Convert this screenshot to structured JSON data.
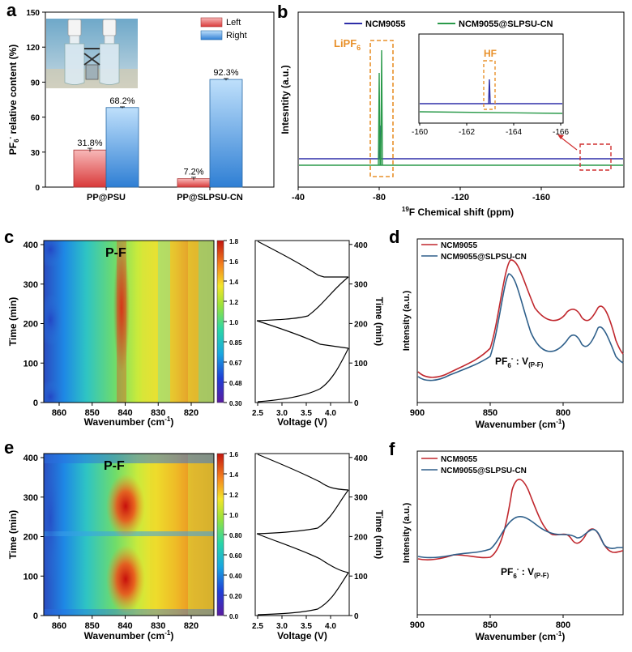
{
  "colors": {
    "left_bar": "#e05050",
    "right_bar": "#4a90d9",
    "ncm": "#2e2ea8",
    "ncm_sl": "#2a9a4a",
    "orange": "#e8902a",
    "d_red": "#c0272d",
    "d_blue": "#2e5f8a"
  },
  "panel_labels": {
    "a": "a",
    "b": "b",
    "c": "c",
    "d": "d",
    "e": "e",
    "f": "f"
  },
  "chart_data": [
    {
      "id": "a",
      "type": "bar",
      "ylabel": "PF6- relative content (%)",
      "ylabel_main": "PF",
      "ylabel_sub": "6",
      "ylabel_sup": "-",
      "ylabel_rest": " relative content (%)",
      "ylim": [
        0,
        150
      ],
      "yticks": [
        "0",
        "30",
        "60",
        "90",
        "120",
        "150"
      ],
      "categories": [
        "PP@PSU",
        "PP@SLPSU-CN"
      ],
      "series": [
        {
          "name": "Left",
          "values": [
            31.8,
            7.2
          ],
          "labels": [
            "31.8%",
            "7.2%"
          ]
        },
        {
          "name": "Right",
          "values": [
            68.2,
            92.3
          ],
          "labels": [
            "68.2%",
            "92.3%"
          ]
        }
      ],
      "legend": "top-right",
      "inset": "photo of two vials"
    },
    {
      "id": "b",
      "type": "line",
      "xlabel_sup": "19",
      "xlabel_rest": "F Chemical shift (ppm)",
      "ylabel": "Intesntity (a.u.)",
      "xlim": [
        -40,
        -175
      ],
      "xticks": [
        "-40",
        "-80",
        "-120",
        "-160"
      ],
      "series": [
        {
          "name": "NCM9055"
        },
        {
          "name": "NCM9055@SLPSU-CN"
        }
      ],
      "annotations": {
        "lipf6_main": "LiPF",
        "lipf6_sub": "6",
        "hf": "HF"
      },
      "inset": {
        "xticks": [
          "-160",
          "-162",
          "-164",
          "-166"
        ],
        "xlim": [
          -160,
          -167
        ]
      },
      "legend": "top"
    },
    {
      "id": "c",
      "type": "heatmap",
      "xlabel": "Wavenumber (cm",
      "xlabel_sup": "-1",
      "xlabel_close": ")",
      "ylabel": "Time (min)",
      "xlim": [
        865,
        815
      ],
      "xticks": [
        "860",
        "850",
        "840",
        "830",
        "820"
      ],
      "ylim": [
        0,
        410
      ],
      "yticks": [
        "0",
        "100",
        "200",
        "300",
        "400"
      ],
      "label": "P-F",
      "colorbar": [
        "0.30",
        "0.48",
        "0.67",
        "0.85",
        "1.0",
        "1.2",
        "1.4",
        "1.6",
        "1.8"
      ],
      "side": {
        "xlabel": "Voltage (V)",
        "ylabel": "Time (min)",
        "xticks": [
          "2.5",
          "3.0",
          "3.5",
          "4.0"
        ],
        "yticks": [
          "0",
          "100",
          "200",
          "300",
          "400"
        ]
      }
    },
    {
      "id": "d",
      "type": "line",
      "xlabel": "Wavenumber (cm",
      "xlabel_sup": "-1",
      "xlabel_close": ")",
      "ylabel": "Intensity (a.u.)",
      "xlim": [
        900,
        760
      ],
      "xticks": [
        "900",
        "850",
        "800"
      ],
      "series": [
        {
          "name": "NCM9055"
        },
        {
          "name": "NCM9055@SLPSU-CN"
        }
      ],
      "annotation": {
        "main": "PF",
        "sub": "6",
        "sup": "-",
        "mid": " : V",
        "sub2": "(P-F)"
      },
      "legend": "top-left"
    },
    {
      "id": "e",
      "type": "heatmap",
      "xlabel": "Wavenumber (cm",
      "xlabel_sup": "-1",
      "xlabel_close": ")",
      "ylabel": "Time (min)",
      "xlim": [
        865,
        815
      ],
      "xticks": [
        "860",
        "850",
        "840",
        "830",
        "820"
      ],
      "ylim": [
        0,
        410
      ],
      "yticks": [
        "0",
        "100",
        "200",
        "300",
        "400"
      ],
      "label": "P-F",
      "colorbar": [
        "0.0",
        "0.20",
        "0.40",
        "0.60",
        "0.80",
        "1.0",
        "1.2",
        "1.4",
        "1.6"
      ],
      "side": {
        "xlabel": "Voltage (V)",
        "ylabel": "Time (min)",
        "xticks": [
          "2.5",
          "3.0",
          "3.5",
          "4.0"
        ],
        "yticks": [
          "0",
          "100",
          "200",
          "300",
          "400"
        ]
      }
    },
    {
      "id": "f",
      "type": "line",
      "xlabel": "Wavenumber (cm",
      "xlabel_sup": "-1",
      "xlabel_close": ")",
      "ylabel": "Intensity (a.u.)",
      "xlim": [
        900,
        760
      ],
      "xticks": [
        "900",
        "850",
        "800"
      ],
      "series": [
        {
          "name": "NCM9055"
        },
        {
          "name": "NCM9055@SLPSU-CN"
        }
      ],
      "annotation": {
        "main": "PF",
        "sub": "6",
        "sup": "-",
        "mid": " : V",
        "sub2": "(P-F)"
      },
      "legend": "top-left"
    }
  ]
}
